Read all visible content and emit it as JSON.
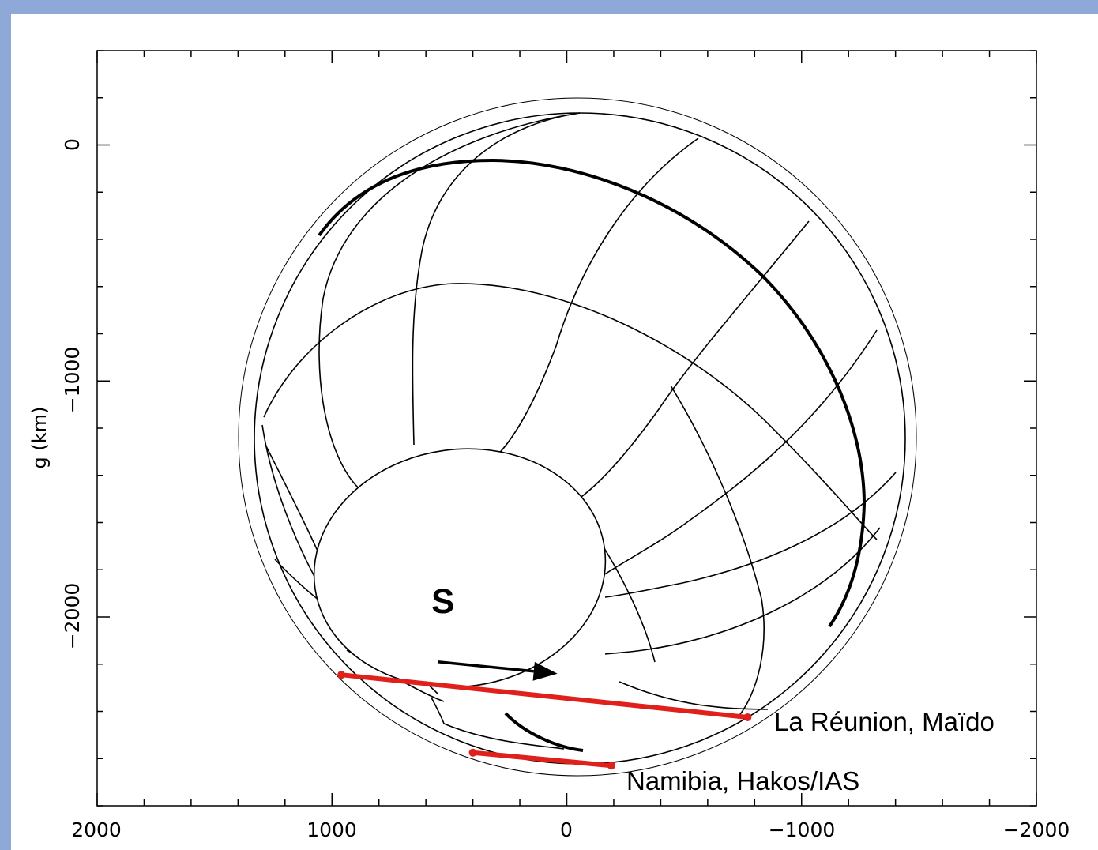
{
  "chart_data": {
    "type": "diagram",
    "ylabel": "g  (km)",
    "xlabel": "",
    "xlim": [
      2000,
      -2000
    ],
    "ylim": [
      -2800,
      400
    ],
    "x_ticks": [
      2000,
      1000,
      0,
      -1000,
      -2000
    ],
    "x_tick_labels": [
      "2000",
      "1000",
      "0",
      "−1000",
      "−2000"
    ],
    "y_ticks": [
      0,
      -1000,
      -2000
    ],
    "y_tick_labels": [
      "0",
      "−1000",
      "−2000"
    ],
    "body_label": "S",
    "limb": {
      "center": [
        0,
        -1250
      ],
      "radius": 1400
    },
    "motion_arrow": {
      "from": [
        550,
        -2190
      ],
      "to": [
        40,
        -2240
      ]
    },
    "chords": [
      {
        "name": "La Réunion, Maïdo",
        "color": "#e0201a",
        "from": [
          960,
          -2245
        ],
        "to": [
          -770,
          -2425
        ]
      },
      {
        "name": "Namibia, Hakos/IAS",
        "color": "#e0201a",
        "from": [
          400,
          -2575
        ],
        "to": [
          -190,
          -2630
        ]
      }
    ]
  }
}
